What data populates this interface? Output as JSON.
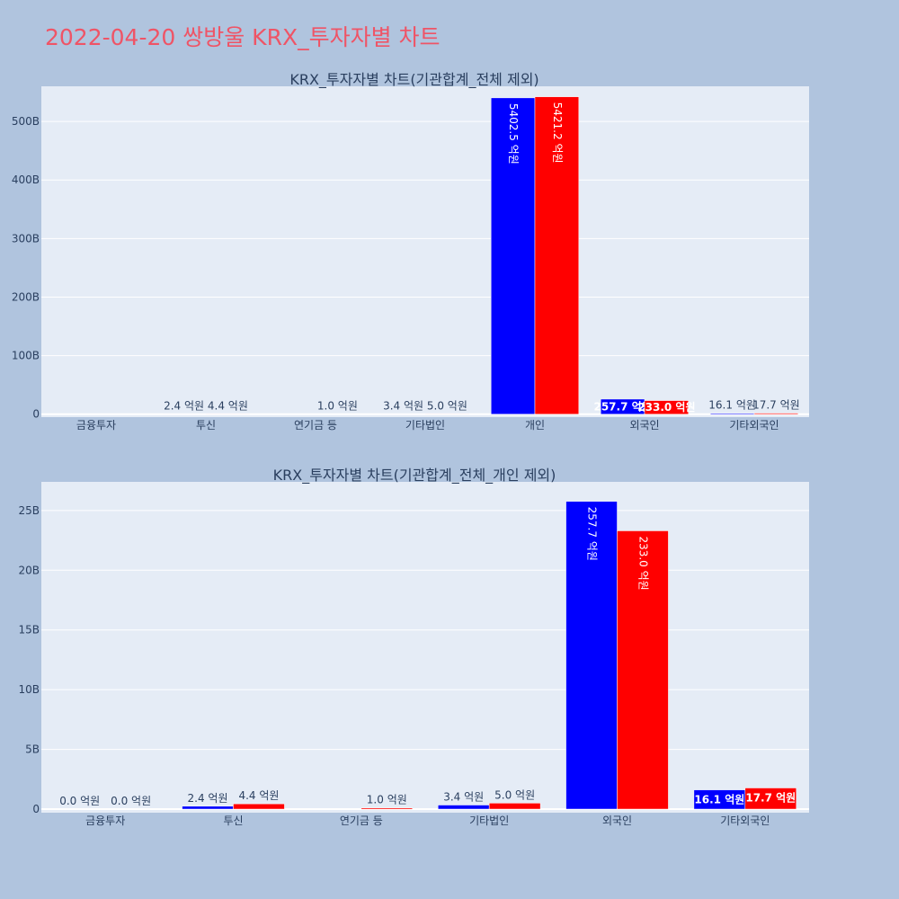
{
  "page": {
    "title": "2022-04-20 쌍방울 KRX_투자자별 차트"
  },
  "colors": {
    "background": "#b0c4de",
    "plot_bg": "#e5ecf6",
    "buy": "#0000ff",
    "sell": "#ff0000",
    "title": "#ef5466",
    "text": "#2a3f5f"
  },
  "chart_data": [
    {
      "type": "bar",
      "title": "KRX_투자자별 차트(기관합계_전체 제외)",
      "categories": [
        "금융투자",
        "투신",
        "연기금 등",
        "기타법인",
        "개인",
        "외국인",
        "기타외국인"
      ],
      "series": [
        {
          "values": [
            0.0,
            0.24,
            0.0,
            0.34,
            540.25,
            25.77,
            1.61
          ],
          "labels": [
            "",
            "2.4 억원",
            "",
            "3.4 억원",
            "5402.5 억원",
            "257.7 억원",
            "16.1 억원"
          ]
        },
        {
          "values": [
            0.0,
            0.44,
            0.1,
            0.5,
            542.12,
            23.3,
            1.77
          ],
          "labels": [
            "",
            "4.4 억원",
            "1.0 억원",
            "5.0 억원",
            "5421.2 억원",
            "233.0 억원",
            "17.7 억원"
          ]
        }
      ],
      "ylim": [
        -5,
        560
      ],
      "yticks": [
        0,
        100,
        200,
        300,
        400,
        500
      ],
      "ytick_labels": [
        "0",
        "100B",
        "200B",
        "300B",
        "400B",
        "500B"
      ],
      "grid": true,
      "legend": false
    },
    {
      "type": "bar",
      "title": "KRX_투자자별 차트(기관합계_전체_개인 제외)",
      "categories": [
        "금융투자",
        "투신",
        "연기금 등",
        "기타법인",
        "외국인",
        "기타외국인"
      ],
      "series": [
        {
          "values": [
            0.0,
            0.24,
            0.0,
            0.34,
            25.77,
            1.61
          ],
          "labels": [
            "0.0 억원",
            "2.4 억원",
            "",
            "3.4 억원",
            "257.7 억원",
            "16.1 억원"
          ]
        },
        {
          "values": [
            0.0,
            0.44,
            0.1,
            0.5,
            23.3,
            1.77
          ],
          "labels": [
            "0.0 억원",
            "4.4 억원",
            "1.0 억원",
            "5.0 억원",
            "233.0 억원",
            "17.7 억원"
          ]
        }
      ],
      "ylim": [
        -0.3,
        27.4
      ],
      "yticks": [
        0,
        5,
        10,
        15,
        20,
        25
      ],
      "ytick_labels": [
        "0",
        "5B",
        "10B",
        "15B",
        "20B",
        "25B"
      ],
      "grid": true,
      "legend": false
    }
  ]
}
